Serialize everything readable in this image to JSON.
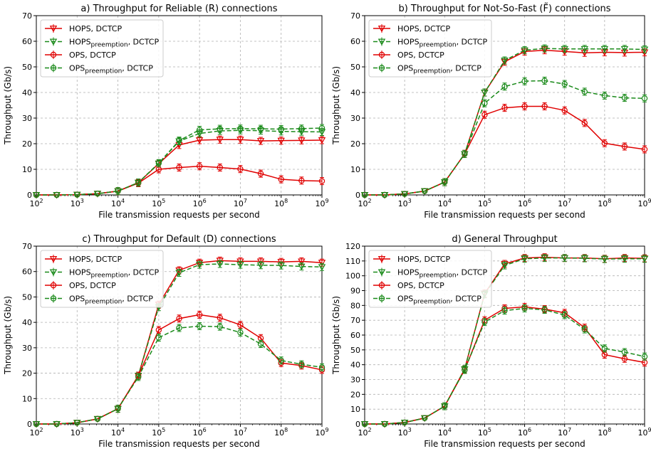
{
  "chart_data": [
    {
      "type": "line",
      "title": "a) Throughput for Reliable (R) connections",
      "xlabel": "File transmission requests per second",
      "ylabel": "Throughput (Gb/s)",
      "xscale": "log",
      "xlim": [
        100,
        1000000000
      ],
      "ylim": [
        0,
        70
      ],
      "yticks": [
        0,
        10,
        20,
        30,
        40,
        50,
        60,
        70
      ],
      "grid": true,
      "legend_position": "top-left",
      "x": [
        100,
        316,
        1000,
        3162,
        10000,
        31623,
        100000,
        316228,
        1000000,
        3162278,
        10000000,
        31622777,
        100000000,
        316227766,
        1000000000
      ],
      "series": [
        {
          "name": "HOPS, DCTCP",
          "color": "#e00000",
          "dash": "solid",
          "marker": "triangle-down",
          "values": [
            0,
            0,
            0.1,
            0.5,
            1.5,
            4.8,
            12.2,
            19.5,
            21.4,
            21.6,
            21.6,
            21.1,
            21.2,
            21.3,
            21.4
          ]
        },
        {
          "name": "HOPS_preemption, DCTCP",
          "color": "#1a8a1a",
          "dash": "dashed",
          "marker": "triangle-down",
          "values": [
            0,
            0,
            0.1,
            0.5,
            1.5,
            4.8,
            12.3,
            21.0,
            24.0,
            25.0,
            25.2,
            25.1,
            24.8,
            24.7,
            24.6
          ]
        },
        {
          "name": "OPS, DCTCP",
          "color": "#e00000",
          "dash": "solid",
          "marker": "circle",
          "values": [
            0,
            0,
            0.1,
            0.5,
            1.5,
            4.6,
            10.0,
            10.7,
            11.2,
            10.7,
            10.1,
            8.3,
            6.1,
            5.6,
            5.4
          ]
        },
        {
          "name": "OPS_preemption, DCTCP",
          "color": "#1a8a1a",
          "dash": "dashed",
          "marker": "circle",
          "values": [
            0,
            0,
            0.1,
            0.5,
            1.5,
            4.8,
            12.4,
            21.2,
            25.4,
            25.8,
            25.9,
            25.8,
            25.7,
            25.9,
            26.1
          ]
        }
      ]
    },
    {
      "type": "line",
      "title": "b) Throughput for Not-So-Fast (F̃) connections",
      "xlabel": "File transmission requests per second",
      "ylabel": "Throughput (Gb/s)",
      "xscale": "log",
      "xlim": [
        100,
        1000000000
      ],
      "ylim": [
        0,
        70
      ],
      "yticks": [
        0,
        10,
        20,
        30,
        40,
        50,
        60,
        70
      ],
      "grid": true,
      "legend_position": "top-left",
      "x": [
        100,
        316,
        1000,
        3162,
        10000,
        31623,
        100000,
        316228,
        1000000,
        3162278,
        10000000,
        31622777,
        100000000,
        316227766,
        1000000000
      ],
      "series": [
        {
          "name": "HOPS, DCTCP",
          "color": "#e00000",
          "dash": "solid",
          "marker": "triangle-down",
          "values": [
            0,
            0,
            0.4,
            1.5,
            5.0,
            16.0,
            40.0,
            52.0,
            56.0,
            56.5,
            56.0,
            55.5,
            55.7,
            55.6,
            55.7
          ]
        },
        {
          "name": "HOPS_preemption, DCTCP",
          "color": "#1a8a1a",
          "dash": "dashed",
          "marker": "triangle-down",
          "values": [
            0,
            0,
            0.4,
            1.5,
            5.0,
            16.0,
            40.0,
            52.5,
            56.5,
            57.2,
            57.0,
            57.0,
            57.0,
            57.0,
            56.8
          ]
        },
        {
          "name": "OPS, DCTCP",
          "color": "#e00000",
          "dash": "solid",
          "marker": "circle",
          "values": [
            0,
            0,
            0.4,
            1.5,
            5.0,
            16.0,
            31.3,
            34.0,
            34.6,
            34.6,
            33.0,
            28.1,
            20.2,
            18.9,
            17.8
          ]
        },
        {
          "name": "OPS_preemption, DCTCP",
          "color": "#1a8a1a",
          "dash": "dashed",
          "marker": "circle",
          "values": [
            0,
            0,
            0.4,
            1.5,
            5.0,
            16.0,
            35.8,
            42.3,
            44.4,
            44.6,
            43.3,
            40.3,
            38.8,
            37.9,
            37.7
          ]
        }
      ]
    },
    {
      "type": "line",
      "title": "c) Throughput for Default (D) connections",
      "xlabel": "File transmission requests per second",
      "ylabel": "Throughput (Gb/s)",
      "xscale": "log",
      "xlim": [
        100,
        1000000000
      ],
      "ylim": [
        0,
        70
      ],
      "yticks": [
        0,
        10,
        20,
        30,
        40,
        50,
        60,
        70
      ],
      "grid": true,
      "legend_position": "top-left",
      "x": [
        100,
        316,
        1000,
        3162,
        10000,
        31623,
        100000,
        316228,
        1000000,
        3162278,
        10000000,
        31622777,
        100000000,
        316227766,
        1000000000
      ],
      "series": [
        {
          "name": "HOPS, DCTCP",
          "color": "#e00000",
          "dash": "solid",
          "marker": "triangle-down",
          "values": [
            0,
            0,
            0.5,
            2.0,
            6.0,
            19.0,
            47.0,
            60.5,
            63.5,
            64.3,
            64.0,
            64.0,
            63.8,
            64.0,
            63.5
          ]
        },
        {
          "name": "HOPS_preemption, DCTCP",
          "color": "#1a8a1a",
          "dash": "dashed",
          "marker": "triangle-down",
          "values": [
            0,
            0,
            0.5,
            2.0,
            6.0,
            19.0,
            46.0,
            59.5,
            62.7,
            63.0,
            62.7,
            62.5,
            62.4,
            62.0,
            61.8
          ]
        },
        {
          "name": "OPS, DCTCP",
          "color": "#e00000",
          "dash": "solid",
          "marker": "circle",
          "values": [
            0,
            0,
            0.5,
            2.0,
            6.0,
            19.0,
            37.0,
            41.5,
            43.0,
            41.8,
            39.0,
            33.8,
            24.0,
            23.0,
            21.3
          ]
        },
        {
          "name": "OPS_preemption, DCTCP",
          "color": "#1a8a1a",
          "dash": "dashed",
          "marker": "circle",
          "values": [
            0,
            0,
            0.5,
            2.0,
            6.0,
            18.5,
            34.0,
            37.8,
            38.5,
            38.3,
            36.0,
            31.5,
            25.0,
            23.5,
            22.3
          ]
        }
      ]
    },
    {
      "type": "line",
      "title": "d) General Throughput",
      "xlabel": "File transmission requests per second",
      "ylabel": "Throughput (Gb/s)",
      "xscale": "log",
      "xlim": [
        100,
        1000000000
      ],
      "ylim": [
        0,
        120
      ],
      "yticks": [
        0,
        10,
        20,
        30,
        40,
        50,
        60,
        70,
        80,
        90,
        100,
        110,
        120
      ],
      "grid": true,
      "legend_position": "top-left",
      "x": [
        100,
        316,
        1000,
        3162,
        10000,
        31623,
        100000,
        316228,
        1000000,
        3162278,
        10000000,
        31622777,
        100000000,
        316227766,
        1000000000
      ],
      "series": [
        {
          "name": "HOPS, DCTCP",
          "color": "#e00000",
          "dash": "solid",
          "marker": "triangle-down",
          "values": [
            0,
            0,
            1.0,
            4.0,
            12.0,
            37.0,
            88.0,
            108.0,
            112.0,
            112.5,
            112.0,
            112.0,
            111.5,
            112.0,
            111.8
          ]
        },
        {
          "name": "HOPS_preemption, DCTCP",
          "color": "#1a8a1a",
          "dash": "dashed",
          "marker": "triangle-down",
          "values": [
            0,
            0,
            1.0,
            4.0,
            12.0,
            37.0,
            87.5,
            107.0,
            111.5,
            112.0,
            112.0,
            111.8,
            111.3,
            111.5,
            111.5
          ]
        },
        {
          "name": "OPS, DCTCP",
          "color": "#e00000",
          "dash": "solid",
          "marker": "circle",
          "values": [
            0,
            0,
            1.0,
            4.0,
            12.0,
            36.5,
            70.0,
            78.0,
            79.0,
            77.5,
            75.0,
            65.0,
            46.8,
            44.0,
            41.5
          ]
        },
        {
          "name": "OPS_preemption, DCTCP",
          "color": "#1a8a1a",
          "dash": "dashed",
          "marker": "circle",
          "values": [
            0,
            0,
            1.0,
            4.0,
            12.0,
            36.5,
            68.8,
            76.5,
            78.0,
            77.0,
            73.5,
            63.8,
            51.0,
            48.5,
            45.5
          ]
        }
      ]
    }
  ]
}
